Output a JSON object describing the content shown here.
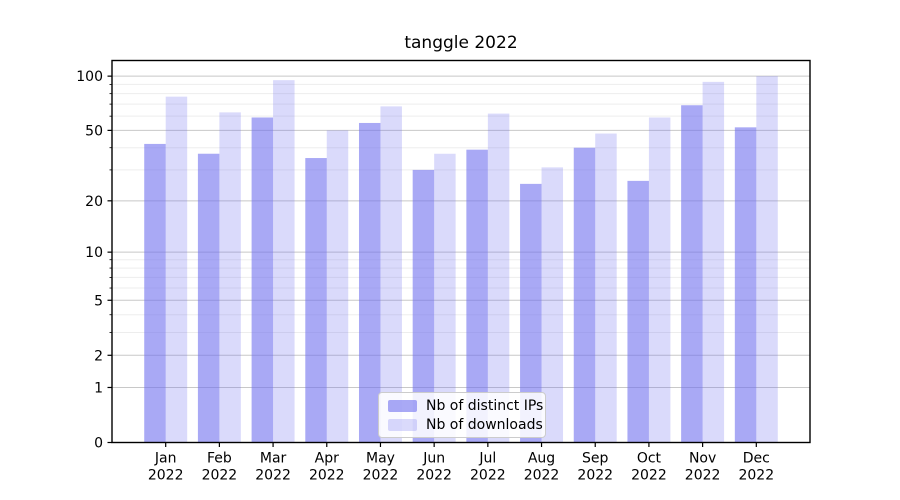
{
  "chart_data": {
    "type": "bar",
    "title": "tanggle 2022",
    "categories": [
      "Jan 2022",
      "Feb 2022",
      "Mar 2022",
      "Apr 2022",
      "May 2022",
      "Jun 2022",
      "Jul 2022",
      "Aug 2022",
      "Sep 2022",
      "Oct 2022",
      "Nov 2022",
      "Dec 2022"
    ],
    "series": [
      {
        "name": "Nb of distinct IPs",
        "color": "#7070ee",
        "opacity": 0.6,
        "values": [
          42,
          37,
          59,
          35,
          55,
          30,
          39,
          25,
          40,
          26,
          69,
          52
        ]
      },
      {
        "name": "Nb of downloads",
        "color": "#7070ee",
        "opacity": 0.26,
        "values": [
          77,
          63,
          95,
          50,
          68,
          37,
          62,
          31,
          48,
          59,
          93,
          100
        ]
      }
    ],
    "yscale": "log1p",
    "ylim": [
      0,
      122
    ],
    "yticks": [
      0,
      1,
      2,
      5,
      10,
      20,
      50,
      100
    ],
    "yticks_minor": [
      3,
      4,
      6,
      7,
      8,
      9,
      30,
      40,
      60,
      70,
      80,
      90
    ],
    "grid": true,
    "legend_position": "lower center",
    "colors": {
      "bar_base": "#7070ee",
      "grid_major": "#c8c8c8",
      "grid_minor": "#ededed",
      "axis": "#000000"
    }
  }
}
